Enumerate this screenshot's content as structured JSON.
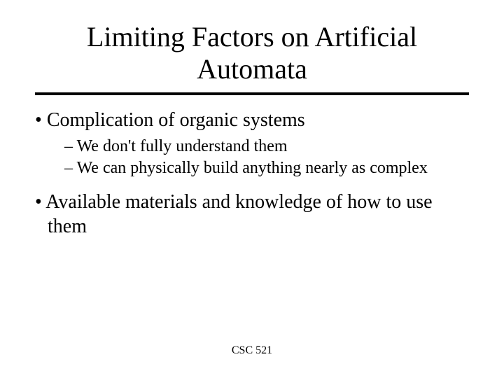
{
  "title": "Limiting Factors on Artificial Automata",
  "bullets": [
    {
      "text": "Complication of organic systems",
      "sub": [
        "We don't fully understand them",
        "We can physically build anything nearly as complex"
      ]
    },
    {
      "text": "Available materials and knowledge of how to use them",
      "sub": []
    }
  ],
  "footer": "CSC 521"
}
